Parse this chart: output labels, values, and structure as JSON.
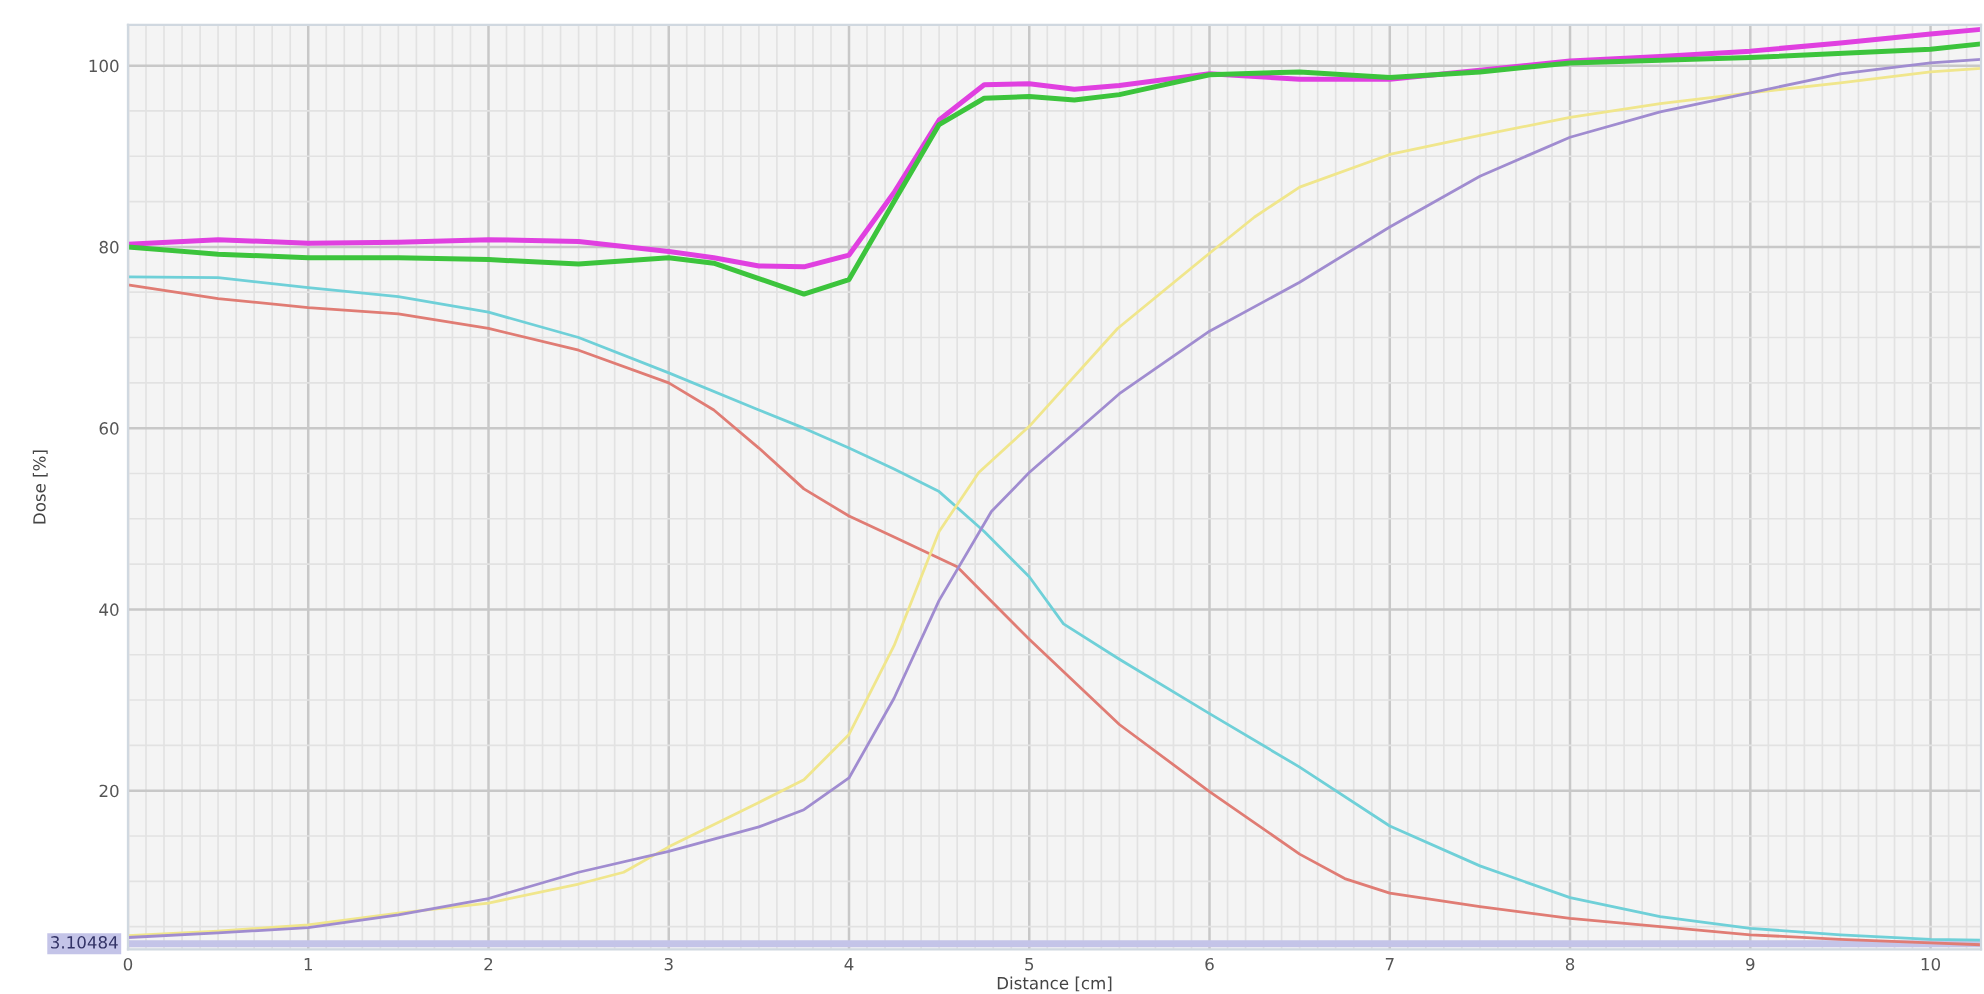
{
  "chart_data": {
    "type": "line",
    "xlabel": "Distance [cm]",
    "ylabel": "Dose [%]",
    "xlim": [
      0,
      10.28
    ],
    "ylim": [
      2.5,
      104.5
    ],
    "xticks": [
      0,
      1,
      2,
      3,
      4,
      5,
      6,
      7,
      8,
      9,
      10
    ],
    "yticks": [
      20,
      40,
      60,
      80,
      100
    ],
    "grid": true,
    "line_style": "solid",
    "marker": "none",
    "ref_lines": [
      {
        "axis": "y",
        "value": 3.10484,
        "label": "3.10484",
        "color": "#c4c4e8"
      }
    ],
    "series": [
      {
        "color": "#e040e0",
        "x": [
          0,
          0.5,
          1,
          1.5,
          2,
          2.5,
          3,
          3.25,
          3.5,
          3.75,
          4,
          4.25,
          4.5,
          4.75,
          5,
          5.25,
          5.5,
          6,
          6.5,
          7,
          7.5,
          8,
          8.5,
          9,
          9.5,
          10,
          10.28
        ],
        "values": [
          80.3,
          80.8,
          80.4,
          80.5,
          80.8,
          80.6,
          79.5,
          78.8,
          77.9,
          77.8,
          79.1,
          86,
          94,
          97.9,
          98,
          97.4,
          97.8,
          99.1,
          98.5,
          98.5,
          99.5,
          100.5,
          101,
          101.6,
          102.5,
          103.5,
          104
        ]
      },
      {
        "color": "#3cc43c",
        "x": [
          0,
          0.5,
          1,
          1.5,
          2,
          2.5,
          3,
          3.25,
          3.5,
          3.75,
          4,
          4.25,
          4.5,
          4.75,
          5,
          5.25,
          5.5,
          6,
          6.5,
          7,
          7.5,
          8,
          9,
          10,
          10.28
        ],
        "values": [
          80,
          79.2,
          78.8,
          78.8,
          78.6,
          78.1,
          78.8,
          78.2,
          76.5,
          74.8,
          76.4,
          85,
          93.5,
          96.4,
          96.6,
          96.2,
          96.8,
          99,
          99.3,
          98.7,
          99.3,
          100.3,
          100.9,
          101.8,
          102.4
        ]
      },
      {
        "color": "#6fd0d8",
        "x": [
          0,
          0.5,
          1,
          1.5,
          2,
          2.5,
          3,
          3.5,
          3.75,
          4,
          4.25,
          4.5,
          4.75,
          5,
          5.19,
          5.5,
          6,
          6.5,
          7,
          7.5,
          8,
          8.5,
          9,
          9.5,
          10,
          10.28
        ],
        "values": [
          76.7,
          76.6,
          75.5,
          74.5,
          72.8,
          70,
          66.1,
          62,
          60,
          57.8,
          55.5,
          53,
          48.6,
          43.6,
          38.4,
          34.5,
          28.5,
          22.6,
          16.1,
          11.7,
          8.2,
          6.1,
          4.8,
          4.1,
          3.6,
          3.5
        ]
      },
      {
        "color": "#e07c74",
        "x": [
          0,
          0.5,
          1,
          1.5,
          2,
          2.5,
          3,
          3.25,
          3.5,
          3.75,
          4,
          4.25,
          4.6,
          4.75,
          5,
          5.5,
          6,
          6.5,
          6.75,
          7,
          7.5,
          8,
          8.5,
          9,
          9.5,
          10,
          10.28
        ],
        "values": [
          75.8,
          74.3,
          73.3,
          72.6,
          71,
          68.6,
          65,
          62,
          57.8,
          53.3,
          50.3,
          48,
          44.7,
          41.7,
          36.7,
          27.3,
          19.9,
          13,
          10.3,
          8.7,
          7.2,
          5.9,
          5,
          4.1,
          3.6,
          3.2,
          3
        ]
      },
      {
        "color": "#f0e68c",
        "x": [
          0,
          0.5,
          1,
          1.5,
          2,
          2.5,
          2.75,
          3,
          3.5,
          3.75,
          4,
          4.25,
          4.5,
          4.72,
          5,
          5.49,
          6,
          6.25,
          6.5,
          7,
          7.5,
          8,
          8.5,
          9,
          9.5,
          10,
          10.28
        ],
        "values": [
          4,
          4.5,
          5.2,
          6.5,
          7.6,
          9.7,
          11,
          13.8,
          18.7,
          21.2,
          26.2,
          36,
          48.6,
          55.1,
          60.2,
          71,
          79.3,
          83.3,
          86.6,
          90.2,
          92.3,
          94.3,
          95.8,
          97,
          98.1,
          99.3,
          99.7
        ]
      },
      {
        "color": "#a08cd0",
        "x": [
          0,
          0.5,
          1,
          1.5,
          2,
          2.5,
          3,
          3.5,
          3.75,
          4,
          4.25,
          4.5,
          4.79,
          5,
          5.5,
          6,
          6.5,
          7,
          7.5,
          8,
          8.5,
          9,
          9.5,
          10,
          10.28
        ],
        "values": [
          3.8,
          4.3,
          4.9,
          6.3,
          8.1,
          11,
          13.3,
          16,
          17.9,
          21.4,
          30.2,
          41,
          50.8,
          55.1,
          63.8,
          70.7,
          76.1,
          82.2,
          87.8,
          92.1,
          94.9,
          97,
          99.1,
          100.3,
          100.7
        ]
      }
    ]
  }
}
